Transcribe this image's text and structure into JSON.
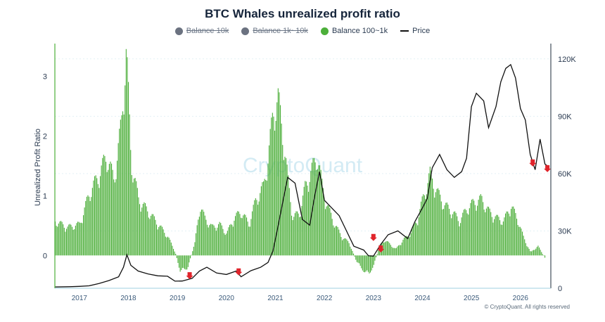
{
  "chart_data": {
    "type": "bar",
    "title": "BTC Whales unrealized profit ratio",
    "ylabel": "Unrealized Profit Ratio",
    "ylim_left": [
      -0.55,
      3.55
    ],
    "ylim_right": [
      0,
      128000
    ],
    "left_ticks": [
      "0",
      "1",
      "2",
      "3"
    ],
    "right_ticks": [
      "0",
      "30K",
      "60K",
      "90K",
      "120K"
    ],
    "x_ticks": [
      "2017",
      "2018",
      "2019",
      "2020",
      "2021",
      "2022",
      "2023",
      "2024",
      "2025",
      "2026"
    ],
    "legend": [
      {
        "name": "Balance 10k",
        "color": "#6b7280",
        "enabled": false
      },
      {
        "name": "Balance 1k~10k",
        "color": "#6b7280",
        "enabled": false
      },
      {
        "name": "Balance 100~1k",
        "color": "#4caf3a",
        "enabled": true
      },
      {
        "name": "Price",
        "color": "#111111",
        "enabled": true
      }
    ],
    "series": [
      {
        "name": "Balance 100~1k",
        "axis": "left",
        "x": [
          2016.5,
          2016.75,
          2017.0,
          2017.2,
          2017.4,
          2017.55,
          2017.7,
          2017.85,
          2017.95,
          2018.05,
          2018.2,
          2018.4,
          2018.6,
          2018.8,
          2018.95,
          2019.05,
          2019.2,
          2019.35,
          2019.45,
          2019.55,
          2019.7,
          2019.85,
          2020.0,
          2020.15,
          2020.3,
          2020.45,
          2020.6,
          2020.75,
          2020.85,
          2020.95,
          2021.05,
          2021.15,
          2021.25,
          2021.35,
          2021.5,
          2021.6,
          2021.75,
          2021.85,
          2021.95,
          2022.05,
          2022.2,
          2022.35,
          2022.5,
          2022.65,
          2022.8,
          2022.9,
          2023.0,
          2023.1,
          2023.2,
          2023.3,
          2023.45,
          2023.6,
          2023.75,
          2023.9,
          2024.0,
          2024.15,
          2024.3,
          2024.45,
          2024.6,
          2024.75,
          2024.9,
          2025.05,
          2025.2,
          2025.35,
          2025.5,
          2025.65,
          2025.8,
          2025.95,
          2026.05,
          2026.2,
          2026.35,
          2026.5
        ],
        "values": [
          0.55,
          0.45,
          0.5,
          1.0,
          1.3,
          1.6,
          1.2,
          2.1,
          3.3,
          1.5,
          0.9,
          0.7,
          0.5,
          0.3,
          0.05,
          -0.25,
          -0.2,
          0.2,
          0.8,
          0.6,
          0.45,
          0.5,
          0.35,
          0.6,
          0.7,
          0.5,
          0.9,
          1.1,
          1.6,
          2.3,
          2.5,
          1.9,
          1.2,
          0.6,
          0.7,
          1.1,
          1.4,
          1.6,
          1.1,
          0.8,
          0.5,
          0.3,
          0.2,
          -0.1,
          -0.25,
          -0.3,
          -0.15,
          0.1,
          0.25,
          0.2,
          0.1,
          0.25,
          0.35,
          0.6,
          0.9,
          1.3,
          1.0,
          0.8,
          0.7,
          0.55,
          0.75,
          0.85,
          0.9,
          0.7,
          0.6,
          0.55,
          0.8,
          0.55,
          0.3,
          0.05,
          0.15,
          -0.05
        ]
      },
      {
        "name": "Price",
        "axis": "right",
        "x": [
          2016.5,
          2016.8,
          2017.0,
          2017.2,
          2017.4,
          2017.6,
          2017.8,
          2017.9,
          2017.97,
          2018.05,
          2018.2,
          2018.4,
          2018.6,
          2018.8,
          2018.95,
          2019.1,
          2019.3,
          2019.45,
          2019.6,
          2019.8,
          2020.0,
          2020.2,
          2020.3,
          2020.5,
          2020.7,
          2020.85,
          2020.95,
          2021.05,
          2021.15,
          2021.25,
          2021.4,
          2021.55,
          2021.7,
          2021.8,
          2021.9,
          2022.0,
          2022.15,
          2022.3,
          2022.45,
          2022.6,
          2022.8,
          2022.9,
          2023.0,
          2023.15,
          2023.3,
          2023.5,
          2023.7,
          2023.85,
          2024.0,
          2024.1,
          2024.2,
          2024.35,
          2024.5,
          2024.65,
          2024.8,
          2024.9,
          2025.0,
          2025.1,
          2025.25,
          2025.35,
          2025.5,
          2025.6,
          2025.7,
          2025.8,
          2025.9,
          2026.0,
          2026.1,
          2026.2,
          2026.3,
          2026.4,
          2026.5,
          2026.55
        ],
        "values": [
          650,
          800,
          1000,
          1300,
          2500,
          4000,
          6000,
          11000,
          17500,
          12000,
          9000,
          7500,
          6500,
          6300,
          3700,
          3800,
          5200,
          9000,
          11000,
          8000,
          7200,
          9000,
          6000,
          9200,
          11000,
          13500,
          19500,
          32000,
          45000,
          58000,
          55000,
          36000,
          33000,
          48000,
          61000,
          46000,
          42000,
          38000,
          30000,
          22000,
          20000,
          17000,
          16800,
          23000,
          28000,
          30000,
          26000,
          35000,
          42000,
          47000,
          63000,
          70000,
          62000,
          58000,
          61000,
          68000,
          95000,
          102000,
          98000,
          84000,
          95000,
          108000,
          115000,
          117000,
          110000,
          94000,
          88000,
          70000,
          62000,
          78000,
          65000,
          64000
        ]
      }
    ],
    "markers": [
      {
        "x": 2019.25,
        "y": 4000
      },
      {
        "x": 2020.25,
        "y": 6000
      },
      {
        "x": 2023.0,
        "y": 24000
      },
      {
        "x": 2023.15,
        "y": 18000
      },
      {
        "x": 2026.25,
        "y": 63000
      },
      {
        "x": 2026.55,
        "y": 60000
      }
    ],
    "watermark": "CryptoQuant",
    "copyright": "© CryptoQuant. All rights reserved"
  }
}
